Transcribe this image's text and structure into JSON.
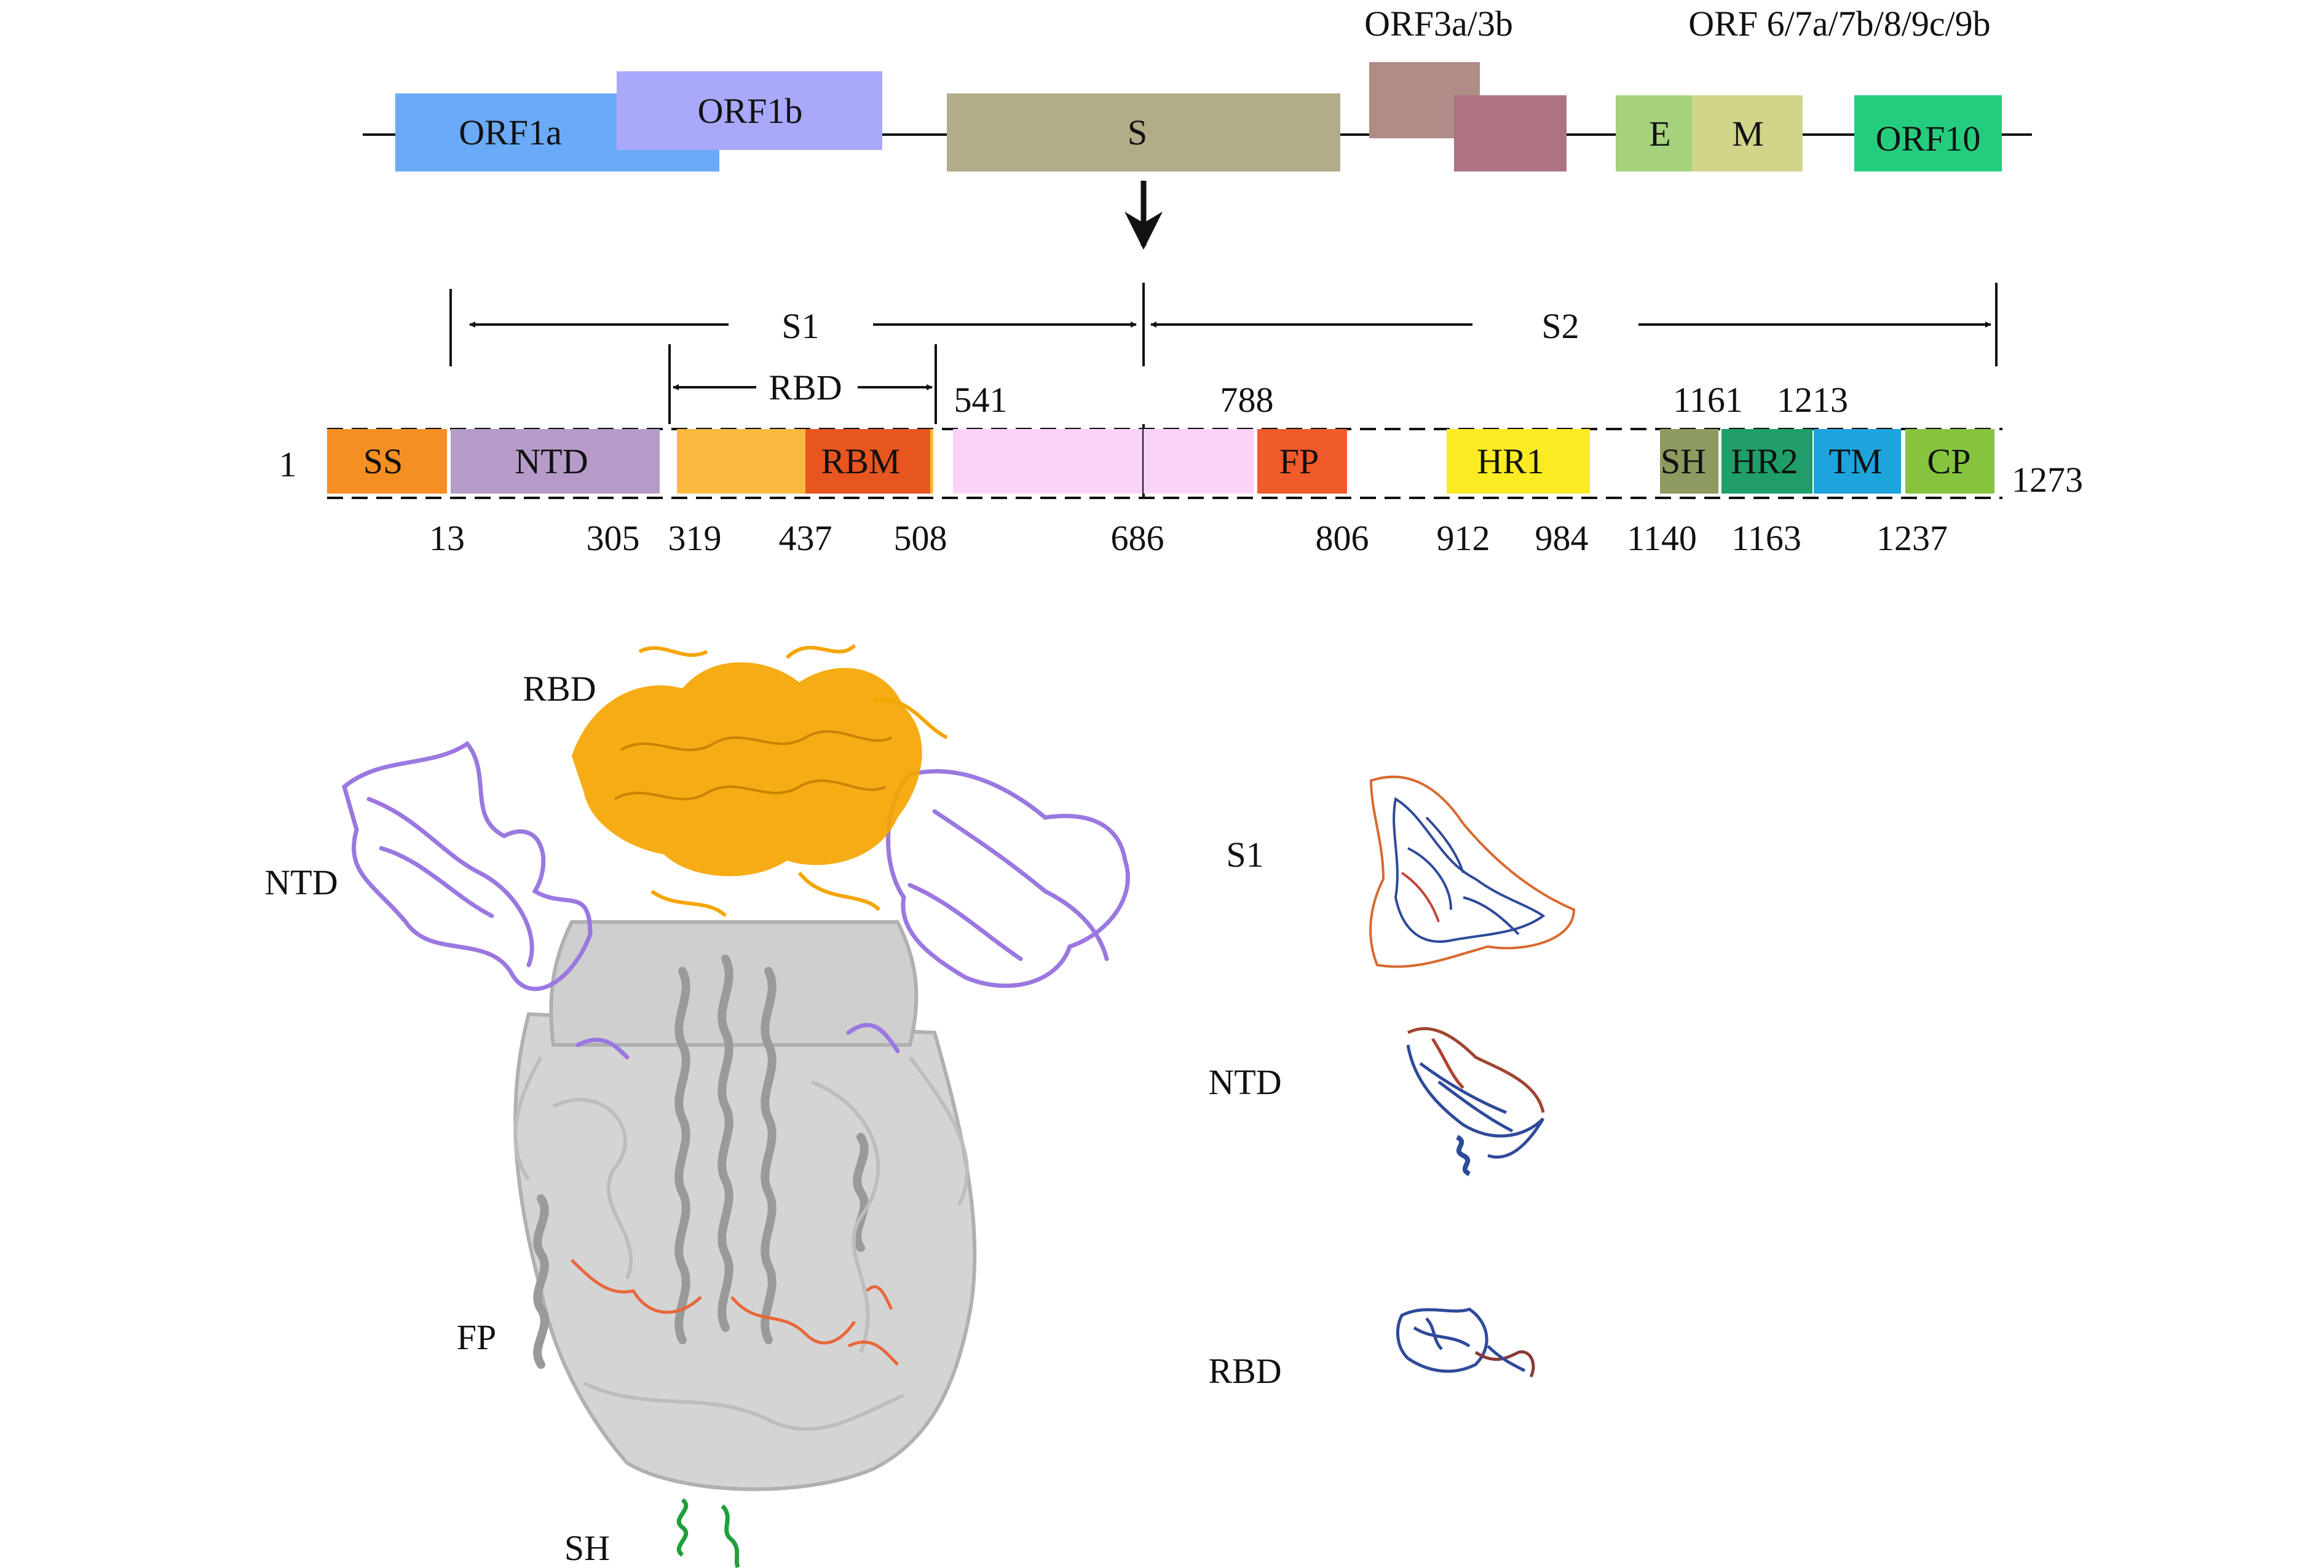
{
  "genome": {
    "genes": [
      {
        "id": "orf1a",
        "label": "ORF1a",
        "color": "#6aaaf6"
      },
      {
        "id": "orf1b",
        "label": "ORF1b",
        "color": "#aaa8fb"
      },
      {
        "id": "s",
        "label": "S",
        "color": "#b0ad88"
      },
      {
        "id": "orf3a",
        "label": "",
        "color": "#b08c86"
      },
      {
        "id": "orf3b",
        "label": "",
        "color": "#ae7283"
      },
      {
        "id": "e",
        "label": "E",
        "color": "#a6d27e"
      },
      {
        "id": "m",
        "label": "M",
        "color": "#d2d48a"
      },
      {
        "id": "orf10",
        "label": "ORF10",
        "color": "#24cd7e"
      }
    ],
    "group_labels": {
      "orf3": "ORF3a/3b",
      "accessory": "ORF 6/7a/7b/8/9c/9b"
    }
  },
  "spike": {
    "regions": {
      "s1": "S1",
      "s2": "S2",
      "rbd": "RBD"
    },
    "start_label": "1",
    "end_label": "1273",
    "domains": [
      {
        "id": "ss",
        "label": "SS",
        "color": "#f58f23"
      },
      {
        "id": "ntd",
        "label": "NTD",
        "color": "#b69bc9"
      },
      {
        "id": "rbd",
        "label": "",
        "color": "#fbb93f"
      },
      {
        "id": "rbm",
        "label": "RBM",
        "color": "#e8561f"
      },
      {
        "id": "s1-tail",
        "label": "",
        "color": "#fcd3f8"
      },
      {
        "id": "s2-head",
        "label": "",
        "color": "#fcd3f8"
      },
      {
        "id": "fp",
        "label": "FP",
        "color": "#f15a2b"
      },
      {
        "id": "hr1",
        "label": "HR1",
        "color": "#fbeb23"
      },
      {
        "id": "sh",
        "label": "SH",
        "color": "#8d9a60"
      },
      {
        "id": "hr2",
        "label": "HR2",
        "color": "#1f9e6a"
      },
      {
        "id": "tm",
        "label": "TM",
        "color": "#1ea4dc"
      },
      {
        "id": "cp",
        "label": "CP",
        "color": "#86c440"
      }
    ],
    "top_positions": [
      "541",
      "788",
      "1161",
      "1213"
    ],
    "bottom_positions": [
      "13",
      "305",
      "319",
      "437",
      "508",
      "686",
      "806",
      "912",
      "984",
      "1140",
      "1163",
      "1237"
    ]
  },
  "structure": {
    "labels": {
      "rbd": "RBD",
      "ntd": "NTD",
      "fp": "FP",
      "sh": "SH"
    },
    "colors": {
      "rbd": "#f5a500",
      "ntd": "#9a78e0",
      "core": "#b8b8b8",
      "fp": "#e8673a",
      "sh": "#1f9e3a"
    }
  },
  "thumbnails": [
    {
      "id": "s1",
      "label": "S1"
    },
    {
      "id": "ntd",
      "label": "NTD"
    },
    {
      "id": "rbd",
      "label": "RBD"
    }
  ]
}
